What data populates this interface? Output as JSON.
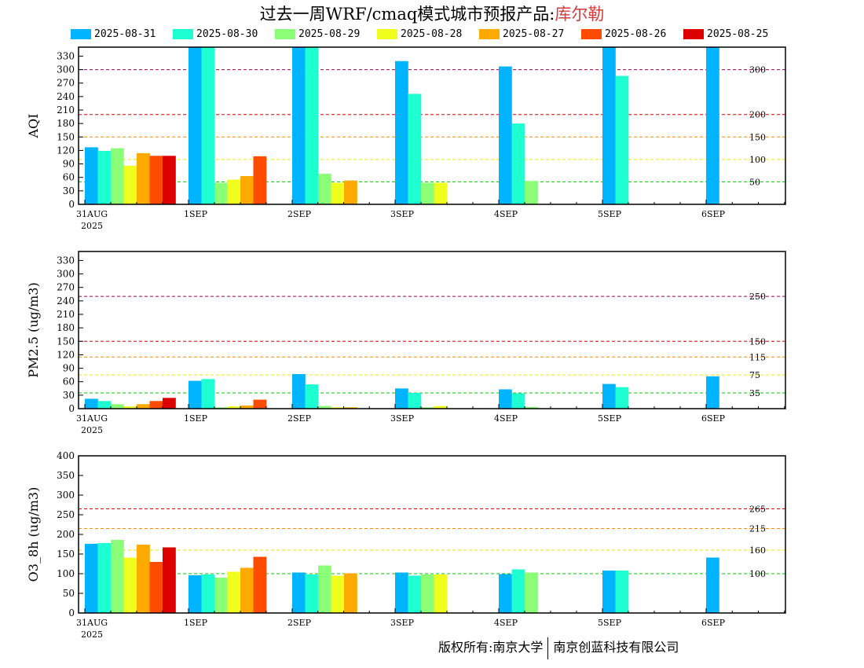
{
  "header": {
    "title_prefix": "过去一周WRF/cmaq模式城市预报产品:",
    "city": "库尔勒"
  },
  "footer": {
    "left": "版权所有:南京大学",
    "right": "南京创蓝科技有限公司"
  },
  "colors": {
    "series": [
      "#00b4ff",
      "#1effd2",
      "#8cff78",
      "#f0ff1e",
      "#ffaa00",
      "#ff4b00",
      "#dc0000"
    ],
    "ref_lines": {
      "green": "#00c800",
      "yellow": "#e6e600",
      "orange": "#ff8c00",
      "red": "#dc0000",
      "purple": "#a0005a"
    }
  },
  "chart_data": [
    {
      "type": "bar",
      "ylabel": "AQI",
      "ylim": [
        0,
        350
      ],
      "yticks": [
        "0",
        "30",
        "60",
        "90",
        "120",
        "150",
        "180",
        "210",
        "240",
        "270",
        "300",
        "330"
      ],
      "categories": [
        "31AUG",
        "1SEP",
        "2SEP",
        "3SEP",
        "4SEP",
        "5SEP",
        "6SEP"
      ],
      "first_sublabel": "2025",
      "ref_lines": [
        {
          "value": 50,
          "label": "50",
          "color": "green"
        },
        {
          "value": 100,
          "label": "100",
          "color": "yellow"
        },
        {
          "value": 150,
          "label": "150",
          "color": "orange"
        },
        {
          "value": 200,
          "label": "200",
          "color": "red"
        },
        {
          "value": 300,
          "label": "300",
          "color": "purple"
        }
      ],
      "series": [
        {
          "name": "2025-08-31",
          "values": [
            127,
            350,
            350,
            319,
            307,
            350,
            350
          ]
        },
        {
          "name": "2025-08-30",
          "values": [
            119,
            350,
            350,
            246,
            180,
            286,
            null
          ]
        },
        {
          "name": "2025-08-29",
          "values": [
            125,
            48,
            68,
            48,
            52,
            null,
            null
          ]
        },
        {
          "name": "2025-08-28",
          "values": [
            86,
            55,
            48,
            48,
            null,
            null,
            null
          ]
        },
        {
          "name": "2025-08-27",
          "values": [
            114,
            63,
            53,
            null,
            null,
            null,
            null
          ]
        },
        {
          "name": "2025-08-26",
          "values": [
            108,
            107,
            null,
            null,
            null,
            null,
            null
          ]
        },
        {
          "name": "2025-08-25",
          "values": [
            108,
            null,
            null,
            null,
            null,
            null,
            null
          ]
        }
      ]
    },
    {
      "type": "bar",
      "ylabel": "PM2.5 (ug/m3)",
      "ylim": [
        0,
        350
      ],
      "yticks": [
        "0",
        "30",
        "60",
        "90",
        "120",
        "150",
        "180",
        "210",
        "240",
        "270",
        "300",
        "330"
      ],
      "categories": [
        "31AUG",
        "1SEP",
        "2SEP",
        "3SEP",
        "4SEP",
        "5SEP",
        "6SEP"
      ],
      "first_sublabel": "2025",
      "ref_lines": [
        {
          "value": 35,
          "label": "35",
          "color": "green"
        },
        {
          "value": 75,
          "label": "75",
          "color": "yellow"
        },
        {
          "value": 115,
          "label": "115",
          "color": "orange"
        },
        {
          "value": 150,
          "label": "150",
          "color": "red"
        },
        {
          "value": 250,
          "label": "250",
          "color": "purple"
        }
      ],
      "series": [
        {
          "name": "2025-08-31",
          "values": [
            22,
            62,
            77,
            45,
            43,
            55,
            72
          ]
        },
        {
          "name": "2025-08-30",
          "values": [
            17,
            66,
            54,
            35,
            34,
            48,
            null
          ]
        },
        {
          "name": "2025-08-29",
          "values": [
            10,
            3,
            6,
            3,
            4,
            null,
            null
          ]
        },
        {
          "name": "2025-08-28",
          "values": [
            5,
            5,
            3,
            6,
            null,
            null,
            null
          ]
        },
        {
          "name": "2025-08-27",
          "values": [
            10,
            7,
            3,
            null,
            null,
            null,
            null
          ]
        },
        {
          "name": "2025-08-26",
          "values": [
            17,
            20,
            null,
            null,
            null,
            null,
            null
          ]
        },
        {
          "name": "2025-08-25",
          "values": [
            24,
            null,
            null,
            null,
            null,
            null,
            null
          ]
        }
      ]
    },
    {
      "type": "bar",
      "ylabel": "O3_8h (ug/m3)",
      "ylim": [
        0,
        400
      ],
      "yticks": [
        "0",
        "50",
        "100",
        "150",
        "200",
        "250",
        "300",
        "350",
        "400"
      ],
      "categories": [
        "31AUG",
        "1SEP",
        "2SEP",
        "3SEP",
        "4SEP",
        "5SEP",
        "6SEP"
      ],
      "first_sublabel": "2025",
      "ref_lines": [
        {
          "value": 100,
          "label": "100",
          "color": "green"
        },
        {
          "value": 160,
          "label": "160",
          "color": "yellow"
        },
        {
          "value": 215,
          "label": "215",
          "color": "orange"
        },
        {
          "value": 265,
          "label": "265",
          "color": "red"
        }
      ],
      "series": [
        {
          "name": "2025-08-31",
          "values": [
            176,
            96,
            103,
            103,
            99,
            108,
            141
          ]
        },
        {
          "name": "2025-08-30",
          "values": [
            178,
            98,
            98,
            95,
            111,
            108,
            null
          ]
        },
        {
          "name": "2025-08-29",
          "values": [
            186,
            90,
            121,
            98,
            103,
            null,
            null
          ]
        },
        {
          "name": "2025-08-28",
          "values": [
            141,
            105,
            95,
            98,
            null,
            null,
            null
          ]
        },
        {
          "name": "2025-08-27",
          "values": [
            174,
            115,
            101,
            null,
            null,
            null,
            null
          ]
        },
        {
          "name": "2025-08-26",
          "values": [
            130,
            143,
            null,
            null,
            null,
            null,
            null
          ]
        },
        {
          "name": "2025-08-25",
          "values": [
            167,
            null,
            null,
            null,
            null,
            null,
            null
          ]
        }
      ]
    }
  ]
}
